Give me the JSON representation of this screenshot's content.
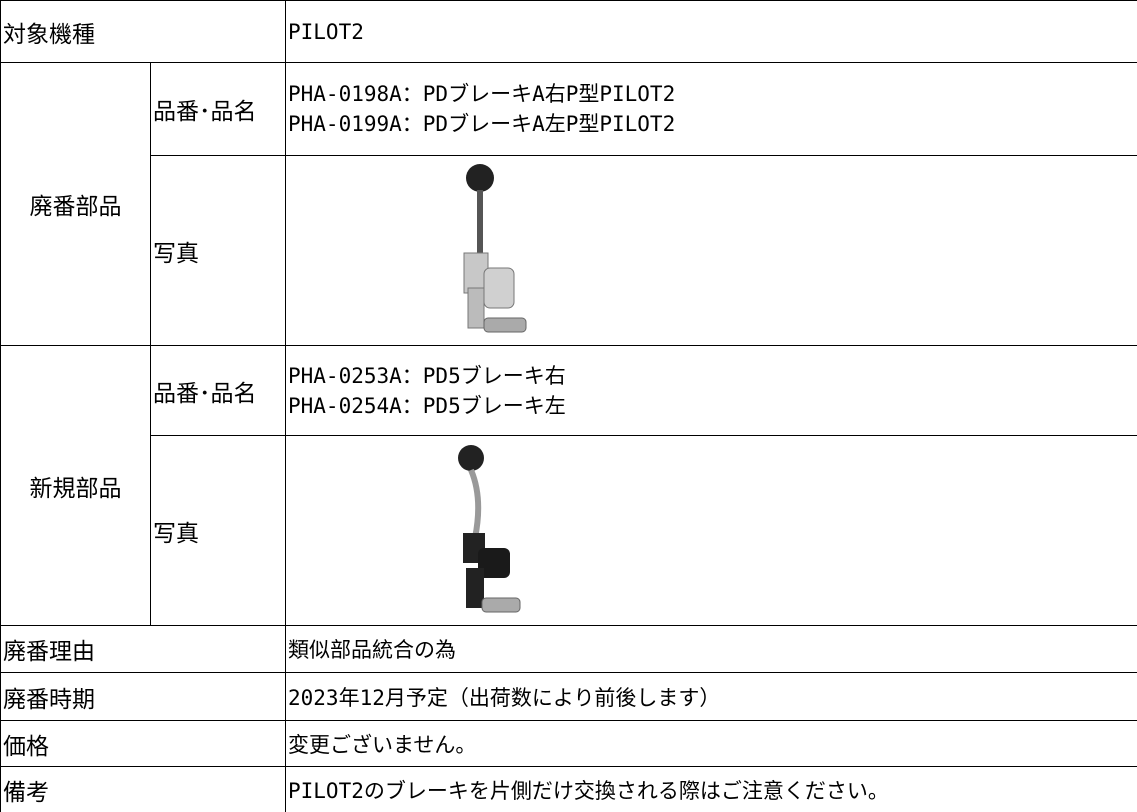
{
  "target": {
    "label": "対象機種",
    "value": "PILOT2"
  },
  "discontinued": {
    "label": "廃番部品",
    "part_label": "品番･品名",
    "parts": [
      "PHA-0198A：PDブレーキA右P型PILOT2",
      "PHA-0199A：PDブレーキA左P型PILOT2"
    ],
    "photo_label": "写真"
  },
  "new": {
    "label": "新規部品",
    "part_label": "品番･品名",
    "parts": [
      "PHA-0253A：PD5ブレーキ右",
      "PHA-0254A：PD5ブレーキ左"
    ],
    "photo_label": "写真"
  },
  "rows": [
    {
      "label": "廃番理由",
      "value": "類似部品統合の為"
    },
    {
      "label": "廃番時期",
      "value": "2023年12月予定（出荷数により前後します）"
    },
    {
      "label": "価格",
      "value": "変更ございません。"
    },
    {
      "label": "備考",
      "value": "PILOT2のブレーキを片側だけ交換される際はご注意ください。"
    }
  ]
}
